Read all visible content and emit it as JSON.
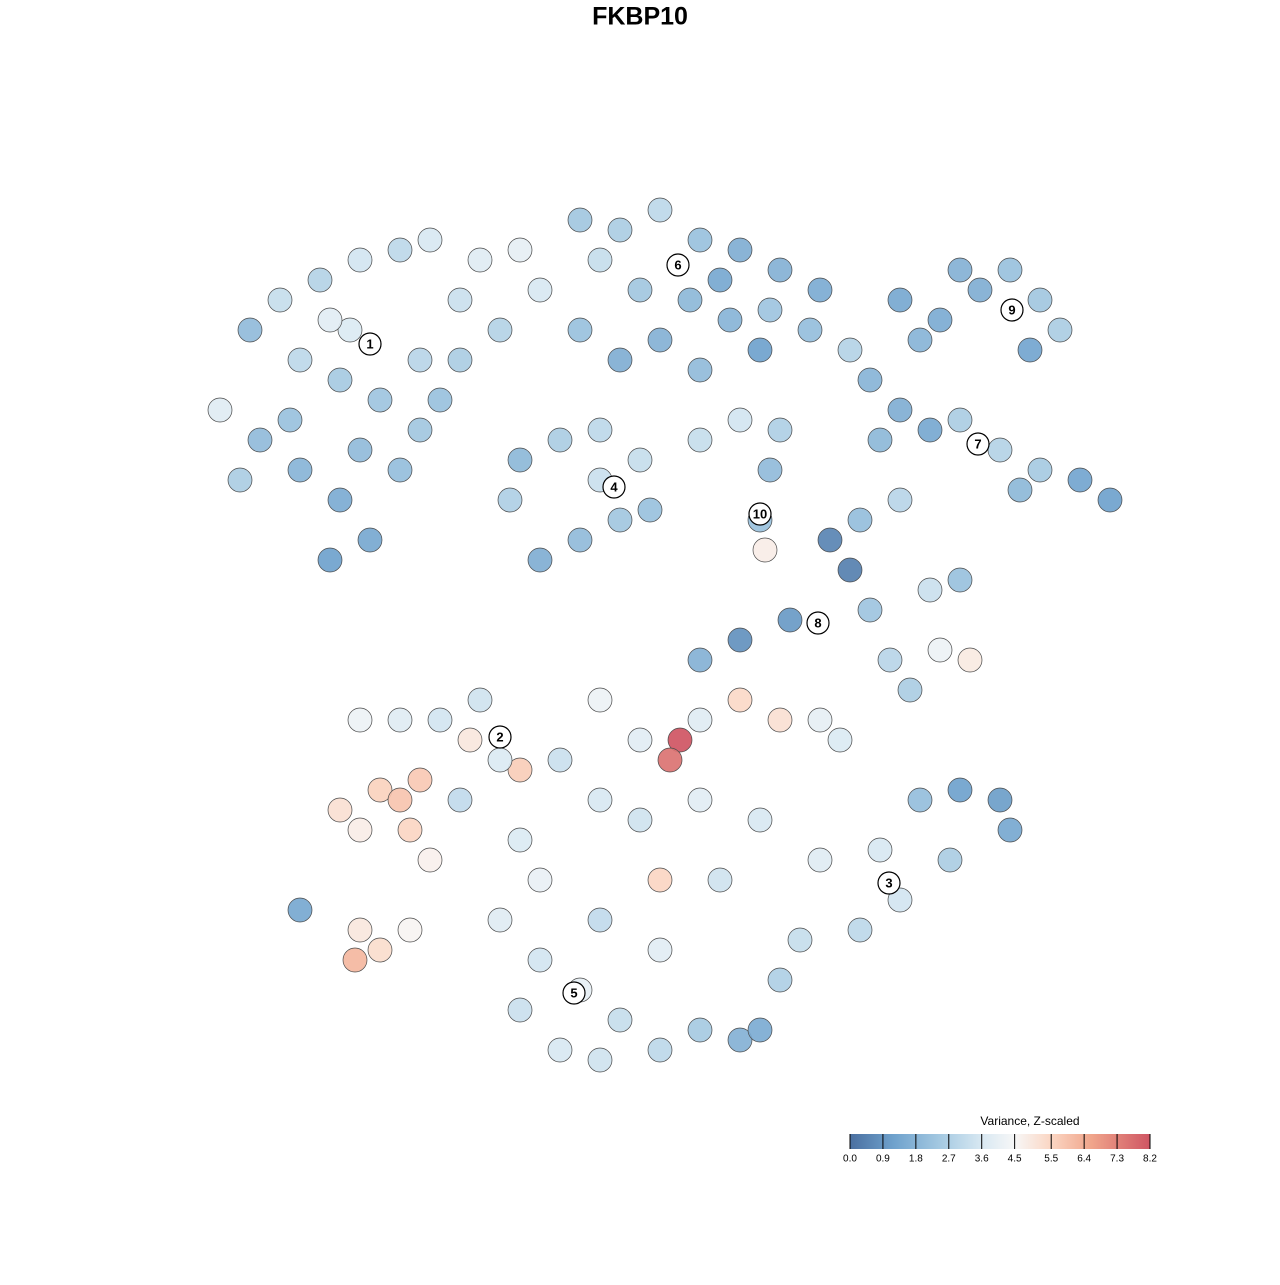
{
  "chart_data": {
    "type": "scatter",
    "title": "FKBP10",
    "x": [
      -39,
      -36,
      -32,
      -28,
      -24,
      -21,
      -34,
      -30,
      -26,
      -22,
      -42,
      -38,
      -34,
      -30,
      -27,
      -31,
      -35,
      -28,
      -24,
      -22,
      -18,
      -16,
      -12,
      -10,
      -14,
      -18,
      -20,
      -40,
      -29,
      -31,
      -6,
      -2,
      2,
      6,
      10,
      14,
      18,
      -4,
      0,
      5,
      9,
      13,
      17,
      21,
      2,
      6,
      -2,
      -6,
      12,
      8,
      26,
      30,
      34,
      37,
      40,
      42,
      39,
      32,
      28,
      23,
      26,
      29,
      32,
      36,
      40,
      44,
      47,
      38,
      24,
      -12,
      -8,
      -4,
      0,
      -2,
      -6,
      -10,
      -13,
      -4,
      1,
      6,
      10,
      14,
      13,
      12,
      12.5,
      19,
      21,
      22,
      26,
      29,
      32,
      15,
      10,
      6,
      25,
      30,
      33,
      27,
      23,
      -28,
      -24,
      -20,
      -16,
      -17,
      -26,
      -24,
      -22,
      -30,
      -28,
      -23,
      -21,
      -18,
      -12,
      -14,
      -34,
      -28,
      -28.5,
      -26,
      -23,
      -8,
      -4,
      0,
      4,
      3,
      6,
      10,
      14,
      18,
      20,
      -4,
      0,
      6,
      12,
      18,
      24,
      28,
      32,
      36,
      37,
      31,
      26,
      22,
      16,
      14,
      -12,
      -10,
      -14,
      -10,
      -6,
      -2,
      2,
      6,
      10,
      12,
      -4,
      -8,
      -12,
      2,
      -4,
      2,
      8
    ],
    "y": [
      31,
      34,
      36,
      38,
      39,
      40,
      28,
      26,
      24,
      28,
      23,
      20,
      17,
      14,
      10,
      8,
      22,
      19,
      17,
      21,
      34,
      38,
      39,
      35,
      31,
      28,
      24,
      16,
      31,
      32,
      42,
      41,
      43,
      40,
      39,
      37,
      35,
      38,
      35,
      34,
      32,
      33,
      31,
      29,
      30,
      27,
      28,
      31,
      29,
      36,
      34,
      32,
      35,
      37,
      34,
      31,
      29,
      37,
      30,
      26,
      23,
      21,
      22,
      19,
      17,
      16,
      14,
      15,
      20,
      18,
      20,
      21,
      18,
      12,
      10,
      8,
      14,
      16,
      13,
      20,
      22,
      21,
      17,
      12,
      9,
      10,
      7,
      12,
      14,
      5,
      6,
      2,
      0,
      -2,
      -2,
      -1,
      -2,
      -5,
      3,
      -8,
      -8,
      -8,
      -6,
      -10,
      -15,
      -16,
      -14,
      -17,
      -19,
      -19,
      -22,
      -16,
      -13,
      -12,
      -27,
      -29,
      -32,
      -31,
      -29,
      -12,
      -6,
      -10,
      -10,
      -12,
      -8,
      -6,
      -8,
      -8,
      -10,
      -16,
      -18,
      -16,
      -18,
      -22,
      -21,
      -16,
      -15,
      -16,
      -19,
      -22,
      -26,
      -29,
      -30,
      -34,
      -20,
      -24,
      -28,
      -32,
      -35,
      -38,
      -41,
      -39,
      -40,
      -39,
      -42,
      -41,
      -37,
      -24,
      -28,
      -31,
      -24
    ],
    "values": [
      2.0,
      3.2,
      2.8,
      3.5,
      3.0,
      3.6,
      3.0,
      2.5,
      2.3,
      2.9,
      3.8,
      2.0,
      1.8,
      1.5,
      1.4,
      1.2,
      2.2,
      2.0,
      2.1,
      2.4,
      3.3,
      3.8,
      4.0,
      3.6,
      2.8,
      2.6,
      2.2,
      2.6,
      3.7,
      3.9,
      2.4,
      2.6,
      3.0,
      2.2,
      1.6,
      1.7,
      1.5,
      3.2,
      2.4,
      1.9,
      1.8,
      2.3,
      2.1,
      2.8,
      1.7,
      2.0,
      1.6,
      2.2,
      1.2,
      1.4,
      1.4,
      1.5,
      1.6,
      2.2,
      2.4,
      2.6,
      1.3,
      1.7,
      1.8,
      1.8,
      1.6,
      1.4,
      2.6,
      2.8,
      2.5,
      1.3,
      1.2,
      1.9,
      1.9,
      1.9,
      2.6,
      3.0,
      3.2,
      2.4,
      2.0,
      1.6,
      2.7,
      3.3,
      2.2,
      3.2,
      3.5,
      2.7,
      2.0,
      2.2,
      4.8,
      0.5,
      0.4,
      2.1,
      2.9,
      3.3,
      2.2,
      1.0,
      0.8,
      1.7,
      2.9,
      4.2,
      4.9,
      2.6,
      2.3,
      4.2,
      3.8,
      3.5,
      3.4,
      5.0,
      5.6,
      5.9,
      5.8,
      5.2,
      4.8,
      5.5,
      4.7,
      3.1,
      5.7,
      3.7,
      1.4,
      5.0,
      6.2,
      5.3,
      4.6,
      3.3,
      4.2,
      3.9,
      8.2,
      7.6,
      3.8,
      5.4,
      5.2,
      4.0,
      3.7,
      3.6,
      3.4,
      3.9,
      3.6,
      3.8,
      3.6,
      2.1,
      1.2,
      1.1,
      1.4,
      2.6,
      3.5,
      3.0,
      3.2,
      2.7,
      3.7,
      4.1,
      3.8,
      3.5,
      4.0,
      3.2,
      3.0,
      2.5,
      1.7,
      1.5,
      3.4,
      3.6,
      3.3,
      5.5,
      3.1,
      3.9,
      3.4
    ],
    "cluster_labels": [
      {
        "text": "1",
        "x": -27,
        "y": 29.6
      },
      {
        "text": "2",
        "x": -14,
        "y": -9.7
      },
      {
        "text": "3",
        "x": 24.9,
        "y": -24.3
      },
      {
        "text": "4",
        "x": -2.6,
        "y": 15.3
      },
      {
        "text": "5",
        "x": -6.6,
        "y": -35.3
      },
      {
        "text": "6",
        "x": 3.8,
        "y": 37.5
      },
      {
        "text": "7",
        "x": 33.8,
        "y": 19.6
      },
      {
        "text": "8",
        "x": 17.8,
        "y": 1.7
      },
      {
        "text": "9",
        "x": 37.2,
        "y": 33
      },
      {
        "text": "10",
        "x": 12,
        "y": 12.6
      }
    ],
    "legend_title": "Variance, Z-scaled",
    "clim": [
      0,
      8.2
    ],
    "cticks": [
      {
        "value": 0,
        "label": "0.0"
      },
      0.9,
      1.8,
      2.7,
      3.6,
      4.5,
      5.5,
      6.4,
      7.3,
      8.2
    ],
    "colorscale": [
      [
        0,
        "#4a6fa0"
      ],
      [
        1.2,
        "#6fa2cd"
      ],
      [
        2.5,
        "#a6cae2"
      ],
      [
        3.6,
        "#d8e8f2"
      ],
      [
        4.5,
        "#f7f7f7"
      ],
      [
        5.5,
        "#fbd6c3"
      ],
      [
        6.6,
        "#f0a58b"
      ],
      [
        8.2,
        "#cf5563"
      ]
    ]
  }
}
